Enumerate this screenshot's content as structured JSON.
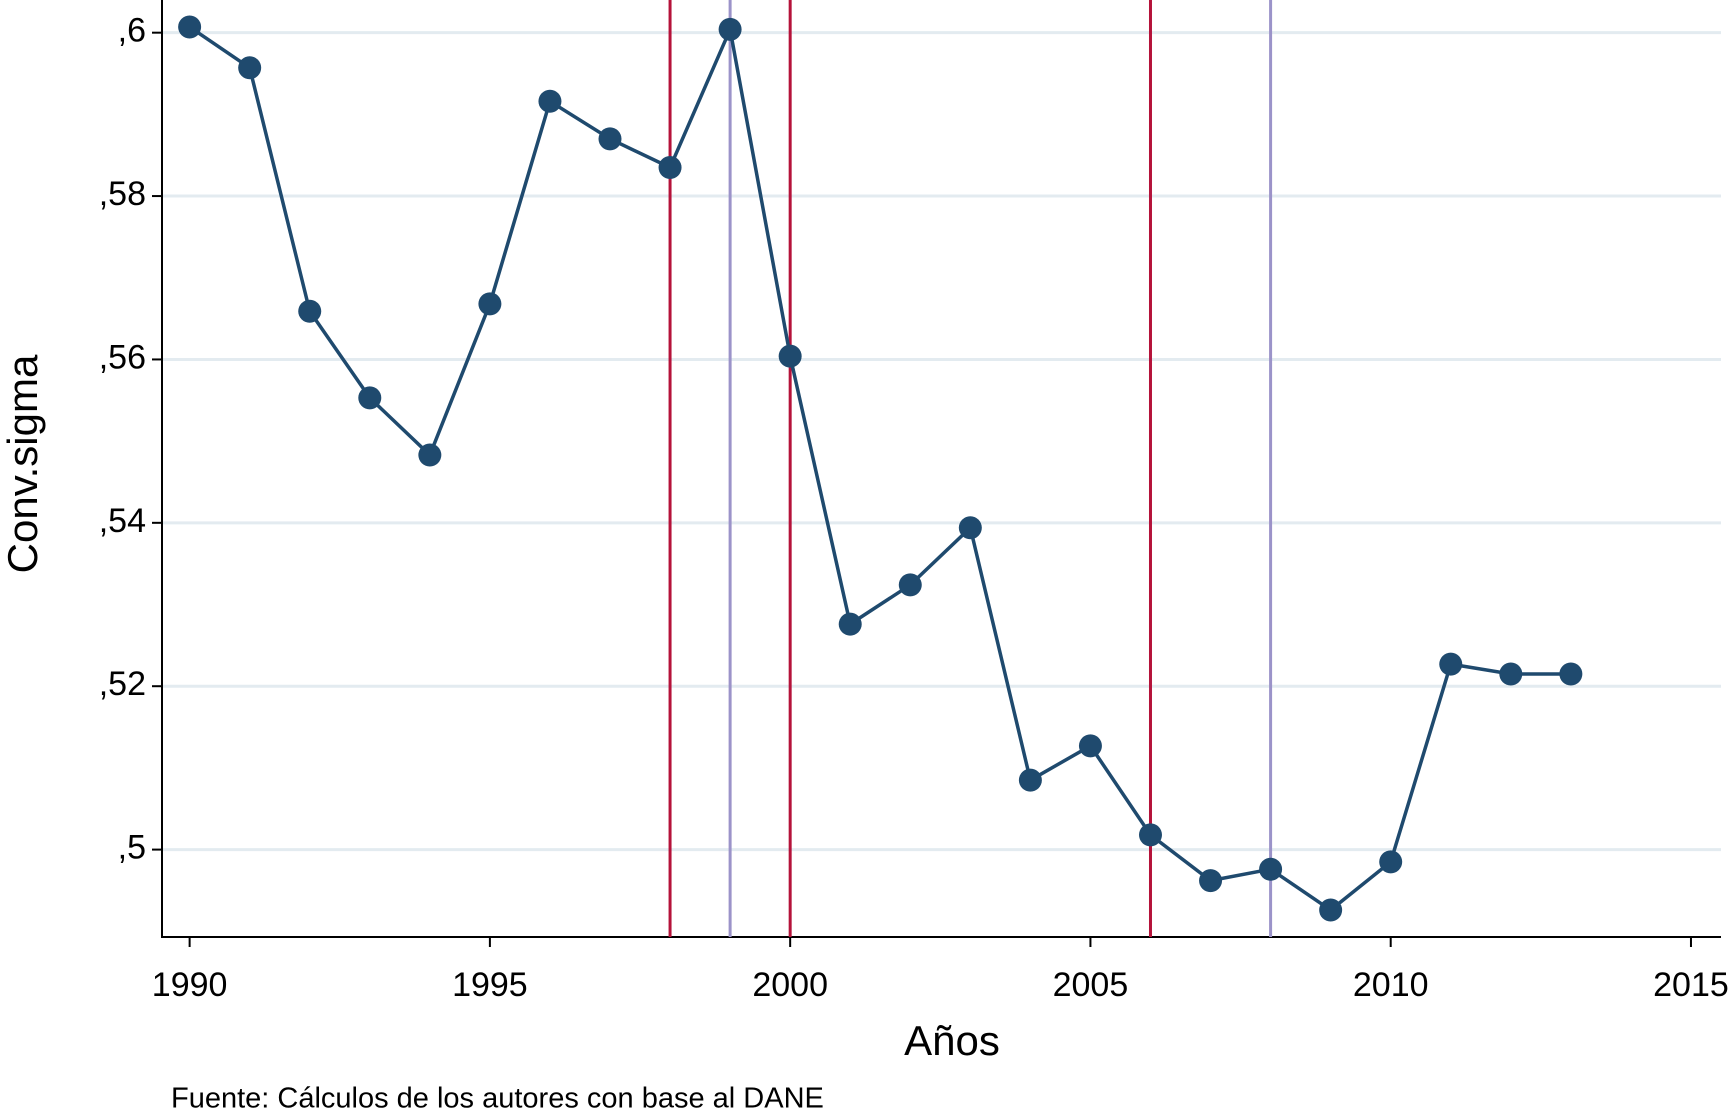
{
  "chart_data": {
    "type": "line",
    "x_label": "Años",
    "y_label": "Conv.sigma",
    "note": "Fuente: Cálculos de los autores con base al DANE",
    "x": [
      1990,
      1991,
      1992,
      1993,
      1994,
      1995,
      1996,
      1997,
      1998,
      1999,
      2000,
      2001,
      2002,
      2003,
      2004,
      2005,
      2006,
      2007,
      2008,
      2009,
      2010,
      2011,
      2012,
      2013
    ],
    "values": [
      0.6007,
      0.5957,
      0.5659,
      0.5553,
      0.5483,
      0.5668,
      0.5916,
      0.587,
      0.5835,
      0.6004,
      0.5604,
      0.5276,
      0.5324,
      0.5394,
      0.5085,
      0.5127,
      0.5018,
      0.4962,
      0.4976,
      0.4926,
      0.4985,
      0.5227,
      0.5215,
      0.5215
    ],
    "color": "#1f4a6e",
    "vlines": [
      {
        "x": 1998,
        "color": "#b5123a"
      },
      {
        "x": 1999,
        "color": "#9b93c9"
      },
      {
        "x": 2000,
        "color": "#b5123a"
      },
      {
        "x": 2006,
        "color": "#b5123a"
      },
      {
        "x": 2008,
        "color": "#9b93c9"
      }
    ],
    "xlim": [
      1989.54,
      2015.5
    ],
    "xticks": [
      1990,
      1995,
      2000,
      2005,
      2010,
      2015
    ],
    "ylim": [
      0.4893,
      0.604
    ],
    "yticks": [
      {
        "value": 0.5,
        "label": ",5"
      },
      {
        "value": 0.52,
        "label": ",52"
      },
      {
        "value": 0.54,
        "label": ",54"
      },
      {
        "value": 0.56,
        "label": ",56"
      },
      {
        "value": 0.58,
        "label": ",58"
      },
      {
        "value": 0.6,
        "label": ",6"
      }
    ],
    "grid": true,
    "grid_color": "#e3ebf0"
  }
}
